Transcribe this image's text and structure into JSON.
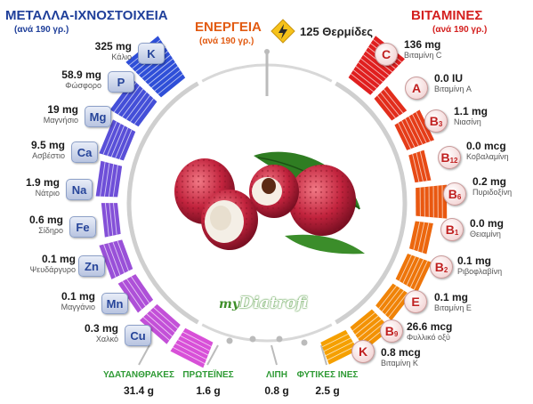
{
  "minerals": {
    "title": "ΜΕΤΑΛΛΑ-ΙΧΝΟΣΤΟΙΧΕΙΑ",
    "subtitle": "(ανά 190 γρ.)",
    "items": [
      {
        "symbol": "K",
        "value": "325 mg",
        "name": "Κάλιο",
        "level": 1.0
      },
      {
        "symbol": "P",
        "value": "58.9 mg",
        "name": "Φώσφορο",
        "level": 0.55
      },
      {
        "symbol": "Mg",
        "value": "19 mg",
        "name": "Μαγνήσιο",
        "level": 0.35
      },
      {
        "symbol": "Ca",
        "value": "9.5 mg",
        "name": "Ασβέστιο",
        "level": 0.25
      },
      {
        "symbol": "Na",
        "value": "1.9 mg",
        "name": "Νάτριο",
        "level": 0.1
      },
      {
        "symbol": "Fe",
        "value": "0.6 mg",
        "name": "Σίδηρο",
        "level": 0.3
      },
      {
        "symbol": "Zn",
        "value": "0.1 mg",
        "name": "Ψευδάργυρο",
        "level": 0.2
      },
      {
        "symbol": "Mn",
        "value": "0.1 mg",
        "name": "Μαγγάνιο",
        "level": 0.3
      },
      {
        "symbol": "Cu",
        "value": "0.3 mg",
        "name": "Χαλκό",
        "level": 0.4
      }
    ]
  },
  "energy": {
    "title": "ΕΝΕΡΓΕΙΑ",
    "subtitle": "(ανά 190 γρ.)",
    "value": "125 Θερμίδες",
    "icon": "lightning-icon"
  },
  "vitamins": {
    "title": "ΒΙΤΑΜΙΝΕΣ",
    "subtitle": "(ανά 190 γρ.)",
    "items": [
      {
        "letter": "C",
        "sub": "",
        "value": "136 mg",
        "name": "Βιταμίνη C",
        "level": 1.0
      },
      {
        "letter": "A",
        "sub": "",
        "value": "0.0 IU",
        "name": "Βιταμίνη A",
        "level": 0.15
      },
      {
        "letter": "B",
        "sub": "3",
        "value": "1.1 mg",
        "name": "Νιασίνη",
        "level": 0.45
      },
      {
        "letter": "B",
        "sub": "12",
        "value": "0.0 mcg",
        "name": "Κοβαλαμίνη",
        "level": 0.1
      },
      {
        "letter": "B",
        "sub": "6",
        "value": "0.2 mg",
        "name": "Πυριδοξίνη",
        "level": 0.5
      },
      {
        "letter": "B",
        "sub": "1",
        "value": "0.0 mg",
        "name": "Θειαμίνη",
        "level": 0.15
      },
      {
        "letter": "B",
        "sub": "2",
        "value": "0.1 mg",
        "name": "Ριβοφλαβίνη",
        "level": 0.35
      },
      {
        "letter": "E",
        "sub": "",
        "value": "0.1 mg",
        "name": "Βιταμίνη E",
        "level": 0.25
      },
      {
        "letter": "B",
        "sub": "9",
        "value": "26.6 mcg",
        "name": "Φυλλικό οξύ",
        "level": 0.4
      },
      {
        "letter": "K",
        "sub": "",
        "value": "0.8 mcg",
        "name": "Βιταμίνη K",
        "level": 0.3
      }
    ]
  },
  "macros": [
    {
      "label": "ΥΔΑΤΑΝΘΡΑΚΕΣ",
      "value": "31.4 g"
    },
    {
      "label": "ΠΡΩΤΕΪΝΕΣ",
      "value": "1.6 g"
    },
    {
      "label": "ΛΙΠΗ",
      "value": "0.8 g"
    },
    {
      "label": "ΦΥΤΙΚΕΣ ΙΝΕΣ",
      "value": "2.5 g"
    }
  ],
  "logo": {
    "prefix": "my",
    "name": "Diatrofi"
  },
  "colors": {
    "minerals_bar_top": "#2f4fd8",
    "minerals_bar_bottom": "#d850d8",
    "vitamins_bar_top": "#e01f1f",
    "vitamins_bar_bottom": "#f5a000",
    "macro_label": "#2e9a34",
    "energy": "#e25b12"
  },
  "image": {
    "description_icon": "lychee-fruit-image"
  }
}
